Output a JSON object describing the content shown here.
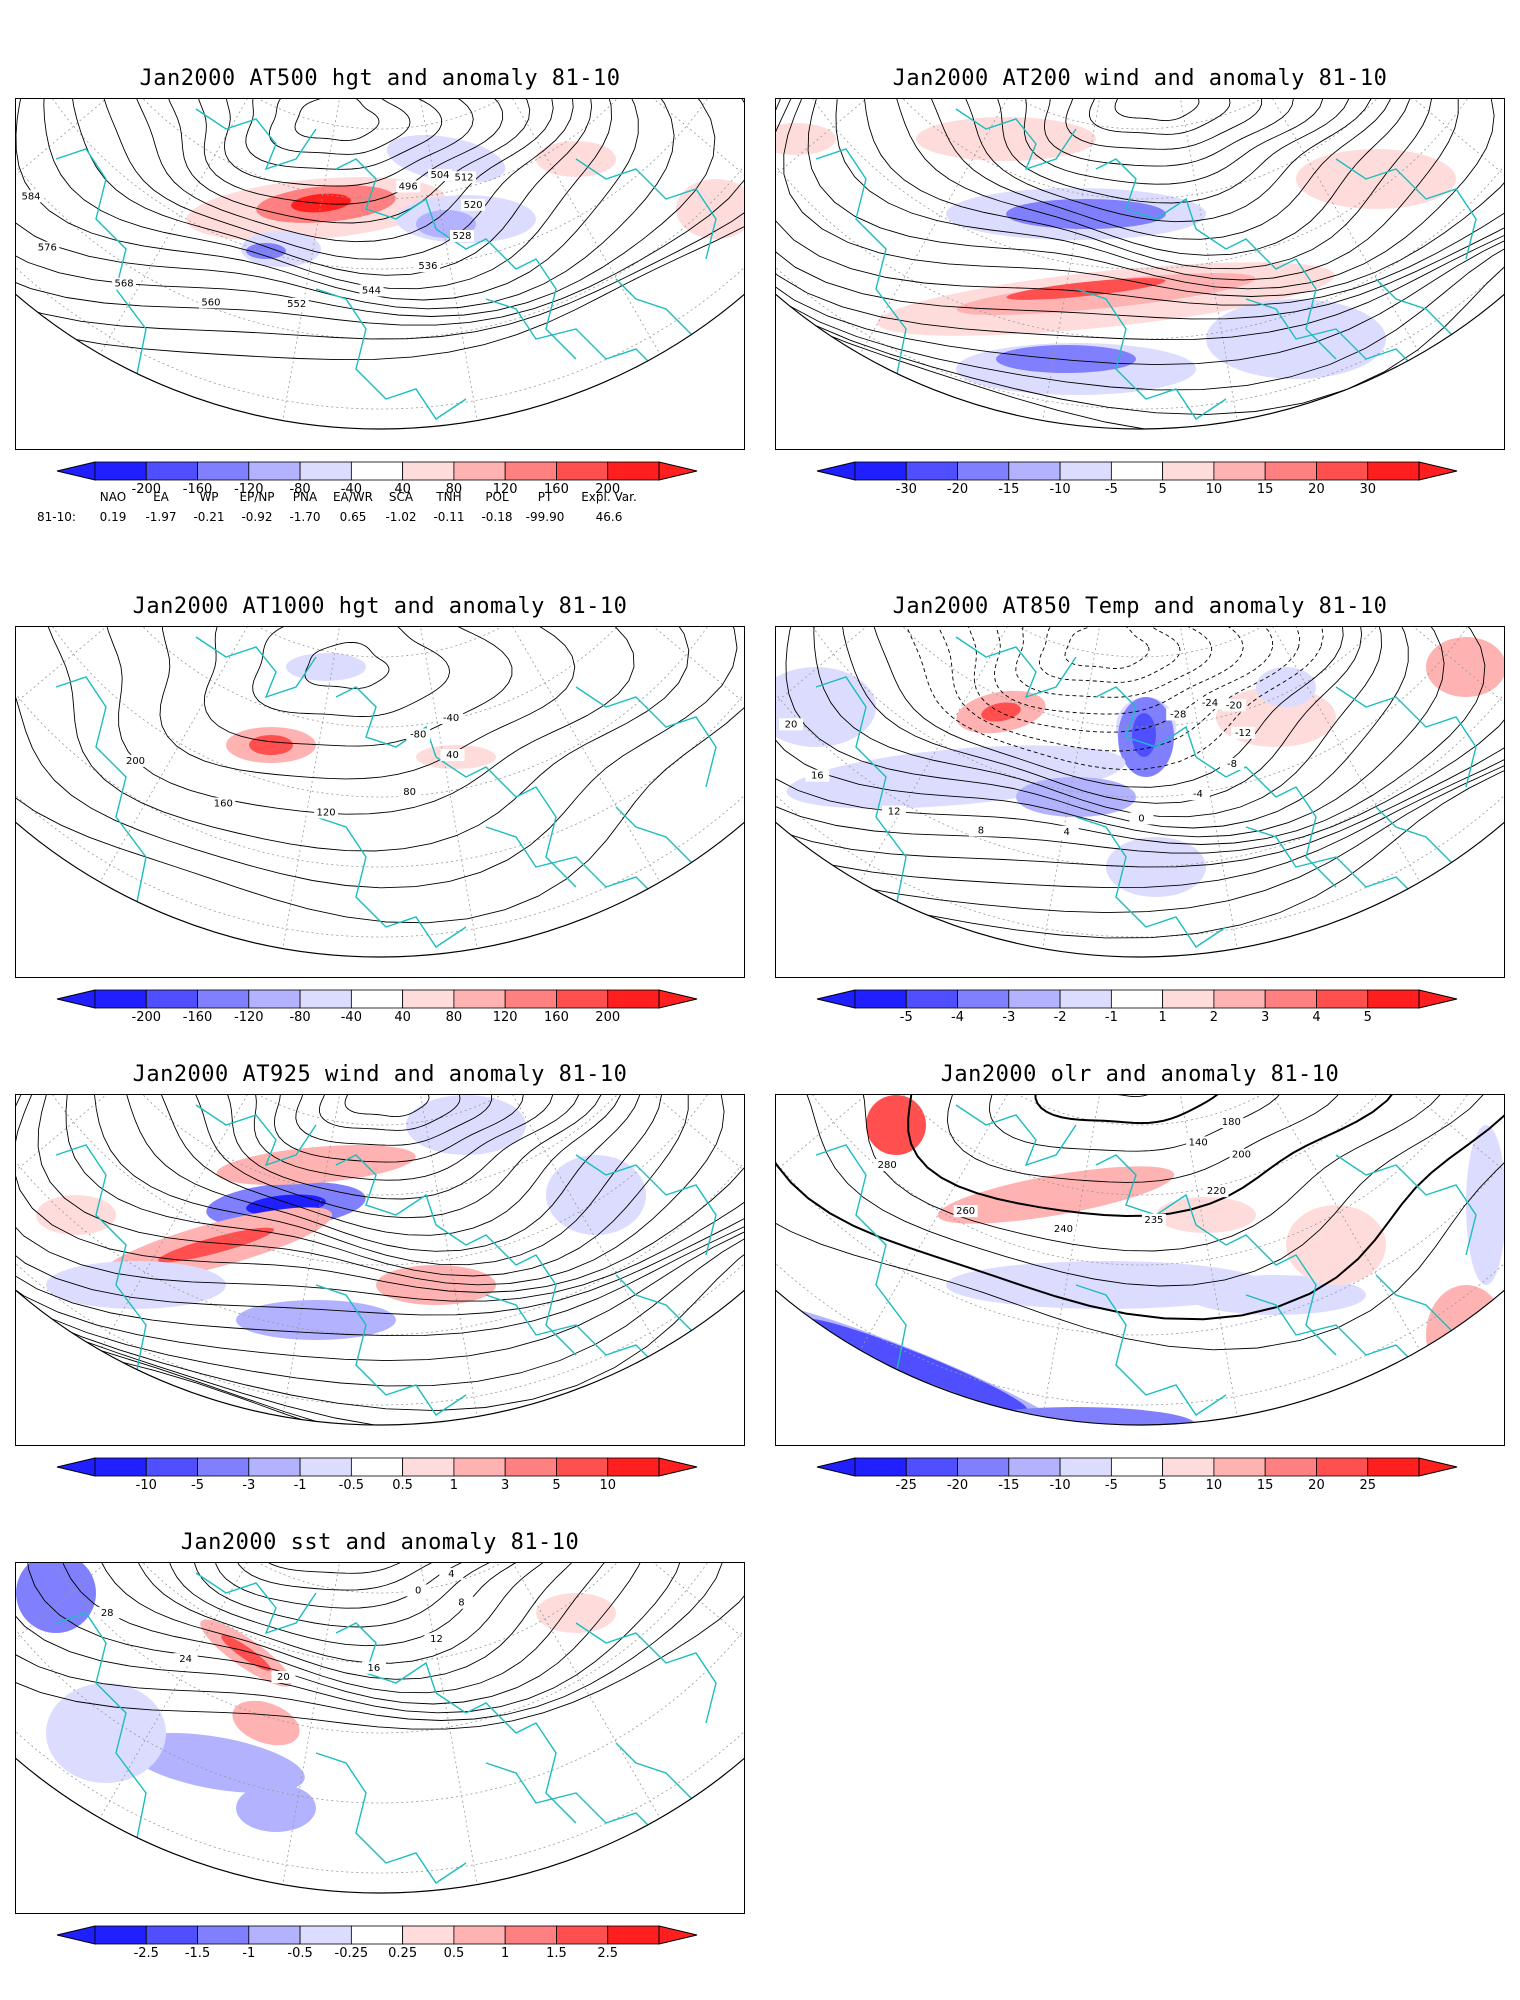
{
  "panels": [
    {
      "title": "Jan2000 AT500 hgt and anomaly 81-10",
      "contour_labels": [
        "496",
        "504",
        "512",
        "520",
        "528",
        "536",
        "544",
        "552",
        "560",
        "568",
        "576",
        "584"
      ],
      "colorbar": [
        "-200",
        "-160",
        "-120",
        "-80",
        "-40",
        "40",
        "80",
        "120",
        "160",
        "200"
      ]
    },
    {
      "title": "Jan2000 AT200 wind and anomaly 81-10",
      "contour_labels": [],
      "colorbar": [
        "-30",
        "-20",
        "-15",
        "-10",
        "-5",
        "5",
        "10",
        "15",
        "20",
        "30"
      ]
    },
    {
      "title": "Jan2000 AT1000 hgt and anomaly 81-10",
      "contour_labels": [
        "-80",
        "-40",
        "40",
        "80",
        "120",
        "160",
        "200"
      ],
      "colorbar": [
        "-200",
        "-160",
        "-120",
        "-80",
        "-40",
        "40",
        "80",
        "120",
        "160",
        "200"
      ]
    },
    {
      "title": "Jan2000 AT850 Temp and anomaly 81-10",
      "contour_labels": [
        "-28",
        "-24",
        "-20",
        "-12",
        "-8",
        "-4",
        "0",
        "4",
        "8",
        "12",
        "16",
        "20"
      ],
      "colorbar": [
        "-5",
        "-4",
        "-3",
        "-2",
        "-1",
        "1",
        "2",
        "3",
        "4",
        "5"
      ]
    },
    {
      "title": "Jan2000 AT925 wind and anomaly 81-10",
      "contour_labels": [],
      "colorbar": [
        "-10",
        "-5",
        "-3",
        "-1",
        "-0.5",
        "0.5",
        "1",
        "3",
        "5",
        "10"
      ]
    },
    {
      "title": "Jan2000 olr and anomaly 81-10",
      "contour_labels": [
        "140",
        "180",
        "200",
        "220",
        "235",
        "240",
        "260",
        "280"
      ],
      "colorbar": [
        "-25",
        "-20",
        "-15",
        "-10",
        "-5",
        "5",
        "10",
        "15",
        "20",
        "25"
      ]
    },
    {
      "title": "Jan2000 sst and anomaly 81-10",
      "contour_labels": [
        "0",
        "4",
        "8",
        "12",
        "16",
        "20",
        "24",
        "28"
      ],
      "colorbar": [
        "-2.5",
        "-1.5",
        "-1",
        "-0.5",
        "-0.25",
        "0.25",
        "0.5",
        "1",
        "1.5",
        "2.5"
      ]
    }
  ],
  "indices": {
    "row_label": "81-10:",
    "names": [
      "NAO",
      "EA",
      "WP",
      "EP/NP",
      "PNA",
      "EA/WR",
      "SCA",
      "TNH",
      "POL",
      "PT",
      "Expl. Var."
    ],
    "values": [
      "0.19",
      "-1.97",
      "-0.21",
      "-0.92",
      "-1.70",
      "0.65",
      "-1.02",
      "-0.11",
      "-0.18",
      "-99.90",
      "46.6"
    ]
  },
  "colors": {
    "blue": [
      "#1f1fff",
      "#4f4fff",
      "#8080ff",
      "#b2b2ff",
      "#dcdcff"
    ],
    "red": [
      "#ffdcdc",
      "#ffb2b2",
      "#ff8080",
      "#ff4f4f",
      "#ff1f1f"
    ],
    "coast": "#1bbdbd"
  }
}
